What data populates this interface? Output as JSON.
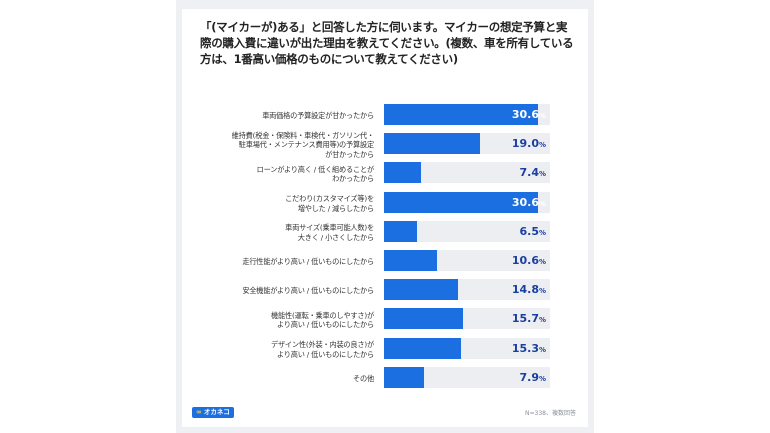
{
  "title": "「(マイカーが)ある」と回答した方に伺います。マイカーの想定予算と実際の購入費に違いが出た理由を教えてください。(複数、車を所有している方は、1番高い価格のものについて教えてください)",
  "chart_data": {
    "type": "bar",
    "orientation": "horizontal",
    "categories": [
      "車両価格の予算設定が甘かったから",
      "維持費(税金・保険料・車検代・ガソリン代・\n駐車場代・メンテナンス費用等)の予算設定\nが甘かったから",
      "ローンがより高く / 低く組めることが\nわかったから",
      "こだわり(カスタマイズ等)を\n増やした / 減らしたから",
      "車両サイズ(乗車可能人数)を\n大きく / 小さくしたから",
      "走行性能がより高い / 低いものにしたから",
      "安全機能がより高い / 低いものにしたから",
      "機能性(運転・乗車のしやすさ)が\nより高い / 低いものにしたから",
      "デザイン性(外装・内装の良さ)が\nより高い / 低いものにしたから",
      "その他"
    ],
    "values": [
      30.6,
      19.0,
      7.4,
      30.6,
      6.5,
      10.6,
      14.8,
      15.7,
      15.3,
      7.9
    ],
    "value_labels": [
      "30.6",
      "19.0",
      "7.4",
      "30.6",
      "6.5",
      "10.6",
      "14.8",
      "15.7",
      "15.3",
      "7.9"
    ],
    "unit": "%",
    "xlim": [
      0,
      33
    ],
    "bar_color": "#1b6fe0",
    "track_color": "#eceef1"
  },
  "footer": {
    "logo_text": "オカネコ",
    "note": "N=338、複数回答"
  }
}
